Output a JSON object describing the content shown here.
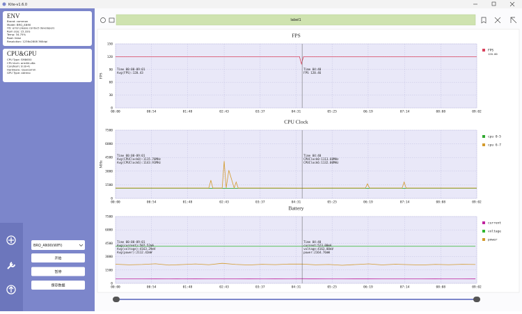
{
  "window_title": "Kite-v1.6.0",
  "env": {
    "title": "ENV",
    "lines": [
      "Brand: common",
      "Model: BRQ_AN90",
      "OS: error please contact developers",
      "Ram size: 15.32G",
      "Temp: 34.75%",
      "Root: false",
      "Resolution: 1236x2808 360dpi"
    ]
  },
  "cpu_gpu": {
    "title": "CPU&GPU",
    "lines": [
      "CPU Type: SM8650",
      "CPU Arch: arm64-v8a",
      "CoreNum: 8 (8-4)",
      "Hardware: Qualcomm",
      "GPU Type: adreno"
    ]
  },
  "device": "BRQ_AN90(WIFI)",
  "buttons": [
    "开始",
    "暂停",
    "保存数据"
  ],
  "toolbar_label": "label1",
  "chart_data": [
    {
      "type": "line",
      "title": "FPS",
      "y_label": "FPS",
      "xlim": [
        0,
        542
      ],
      "xticks": [
        {
          "value": 0,
          "label": "00:00"
        },
        {
          "value": 54,
          "label": "00:54"
        },
        {
          "value": 108,
          "label": "01:48"
        },
        {
          "value": 163,
          "label": "02:43"
        },
        {
          "value": 217,
          "label": "03:37"
        },
        {
          "value": 271,
          "label": "04:31"
        },
        {
          "value": 325,
          "label": "05:25"
        },
        {
          "value": 379,
          "label": "06:19"
        },
        {
          "value": 434,
          "label": "07:14"
        },
        {
          "value": 488,
          "label": "08:08"
        },
        {
          "value": 542,
          "label": "09:02"
        }
      ],
      "ylim": [
        0,
        150
      ],
      "yticks": [
        0,
        30,
        60,
        90,
        120,
        150
      ],
      "grid": true,
      "x": [
        0,
        60,
        120,
        180,
        240,
        270,
        276,
        279,
        282,
        300,
        360,
        420,
        480,
        542
      ],
      "series": [
        {
          "name": "FPS",
          "color": "#d9425c",
          "values": [
            120,
            120,
            120,
            120,
            120,
            120,
            120,
            103,
            120,
            120,
            120,
            120,
            120,
            120
          ]
        }
      ],
      "legend_note": "120.00",
      "annotations": [
        "Time 00:00-09:01",
        "Avg(FPS):120.43"
      ],
      "cursor_x": 280,
      "cursor_labels": [
        "Time 04:40",
        "FPS 120.46"
      ]
    },
    {
      "type": "line",
      "title": "CPU Clock",
      "y_label": "MHz",
      "xlim": [
        0,
        542
      ],
      "xticks": [
        {
          "value": 0,
          "label": "00:00"
        },
        {
          "value": 54,
          "label": "00:54"
        },
        {
          "value": 108,
          "label": "01:48"
        },
        {
          "value": 163,
          "label": "02:43"
        },
        {
          "value": 217,
          "label": "03:37"
        },
        {
          "value": 271,
          "label": "04:31"
        },
        {
          "value": 325,
          "label": "05:25"
        },
        {
          "value": 379,
          "label": "06:19"
        },
        {
          "value": 434,
          "label": "07:14"
        },
        {
          "value": 488,
          "label": "08:08"
        },
        {
          "value": 542,
          "label": "09:02"
        }
      ],
      "ylim": [
        0,
        7500
      ],
      "yticks": [
        0,
        1500,
        3000,
        4500,
        6000,
        7500
      ],
      "grid": true,
      "x": [
        0,
        30,
        60,
        90,
        120,
        140,
        143,
        146,
        155,
        160,
        163,
        166,
        170,
        178,
        181,
        184,
        200,
        240,
        280,
        320,
        360,
        375,
        378,
        381,
        400,
        430,
        433,
        436,
        460,
        500,
        542
      ],
      "series": [
        {
          "name": "cpu 0-5",
          "color": "#2fa82f",
          "values": [
            1115,
            1115,
            1115,
            1115,
            1115,
            1115,
            1115,
            1115,
            1115,
            1115,
            1115,
            1115,
            1115,
            1115,
            1115,
            1115,
            1115,
            1115,
            1113.6,
            1115,
            1115,
            1115,
            1115,
            1115,
            1115,
            1115,
            1115,
            1115,
            1115,
            1115,
            1115
          ]
        },
        {
          "name": "cpu 6-7",
          "color": "#d39a2c",
          "values": [
            1143,
            1143,
            1143,
            1143,
            1143,
            1143,
            2000,
            1143,
            1143,
            1143,
            4100,
            1143,
            3100,
            1143,
            1800,
            1143,
            1143,
            1143,
            1132,
            1143,
            1143,
            1143,
            1600,
            1143,
            1143,
            1143,
            1800,
            1143,
            1143,
            1143,
            1143
          ]
        }
      ],
      "annotations": [
        "Time 00:00-09:01",
        "Avg(CPUClock0):1115.76MHz",
        "Avg(CPUClock6):1143.91MHz"
      ],
      "cursor_x": 280,
      "cursor_labels": [
        "Time 04:40",
        "CPUClock0:1113.60MHz",
        "CPUClock6:1132.00MHz"
      ]
    },
    {
      "type": "line",
      "title": "Battery",
      "y_label": "",
      "xlim": [
        0,
        542
      ],
      "xticks": [
        {
          "value": 0,
          "label": "00:00"
        },
        {
          "value": 54,
          "label": "00:54"
        },
        {
          "value": 108,
          "label": "01:48"
        },
        {
          "value": 163,
          "label": "02:43"
        },
        {
          "value": 217,
          "label": "03:37"
        },
        {
          "value": 271,
          "label": "04:31"
        },
        {
          "value": 325,
          "label": "05:25"
        },
        {
          "value": 379,
          "label": "06:19"
        },
        {
          "value": 434,
          "label": "07:14"
        },
        {
          "value": 488,
          "label": "08:08"
        },
        {
          "value": 542,
          "label": "09:02"
        }
      ],
      "ylim": [
        0,
        7500
      ],
      "yticks": [
        0,
        1500,
        3000,
        4500,
        6000,
        7500
      ],
      "grid": true,
      "x": [
        0,
        20,
        40,
        60,
        80,
        100,
        120,
        140,
        160,
        180,
        200,
        220,
        240,
        260,
        280,
        300,
        320,
        340,
        360,
        380,
        400,
        420,
        440,
        460,
        480,
        500,
        520,
        540
      ],
      "series": [
        {
          "name": "current",
          "color": "#c0249e",
          "values": [
            510,
            505,
            500,
            512,
            498,
            507,
            503,
            515,
            500,
            509,
            502,
            506,
            511,
            520,
            523,
            504,
            499,
            508,
            512,
            503,
            507,
            500,
            510,
            506,
            502,
            509,
            505,
            511
          ]
        },
        {
          "name": "voltage",
          "color": "#2fb52f",
          "values": [
            4163,
            4163,
            4163,
            4163,
            4163,
            4163,
            4163,
            4163,
            4163,
            4163,
            4163,
            4163,
            4163,
            4163,
            4163,
            4163,
            4163,
            4163,
            4163,
            4163,
            4163,
            4163,
            4163,
            4163,
            4163,
            4163,
            4163,
            4163
          ]
        },
        {
          "name": "power",
          "color": "#d39a2c",
          "values": [
            2150,
            2080,
            2120,
            2200,
            2050,
            2110,
            2180,
            2090,
            2250,
            2130,
            2060,
            2140,
            2100,
            2170,
            2165,
            2080,
            2120,
            2030,
            2110,
            2190,
            2070,
            2150,
            2100,
            2060,
            2130,
            2090,
            2140,
            2120
          ]
        }
      ],
      "annotations": [
        "Time 00:00-09:01",
        "Avg(current):507.52mA",
        "Avg(voltage):4163.29mV",
        "Avg(power):2112.42mW"
      ],
      "cursor_x": 280,
      "cursor_labels": [
        "Time 04:40",
        "current:523.00mA",
        "voltage:4163.00mV",
        "power:2164.76mW"
      ]
    }
  ]
}
